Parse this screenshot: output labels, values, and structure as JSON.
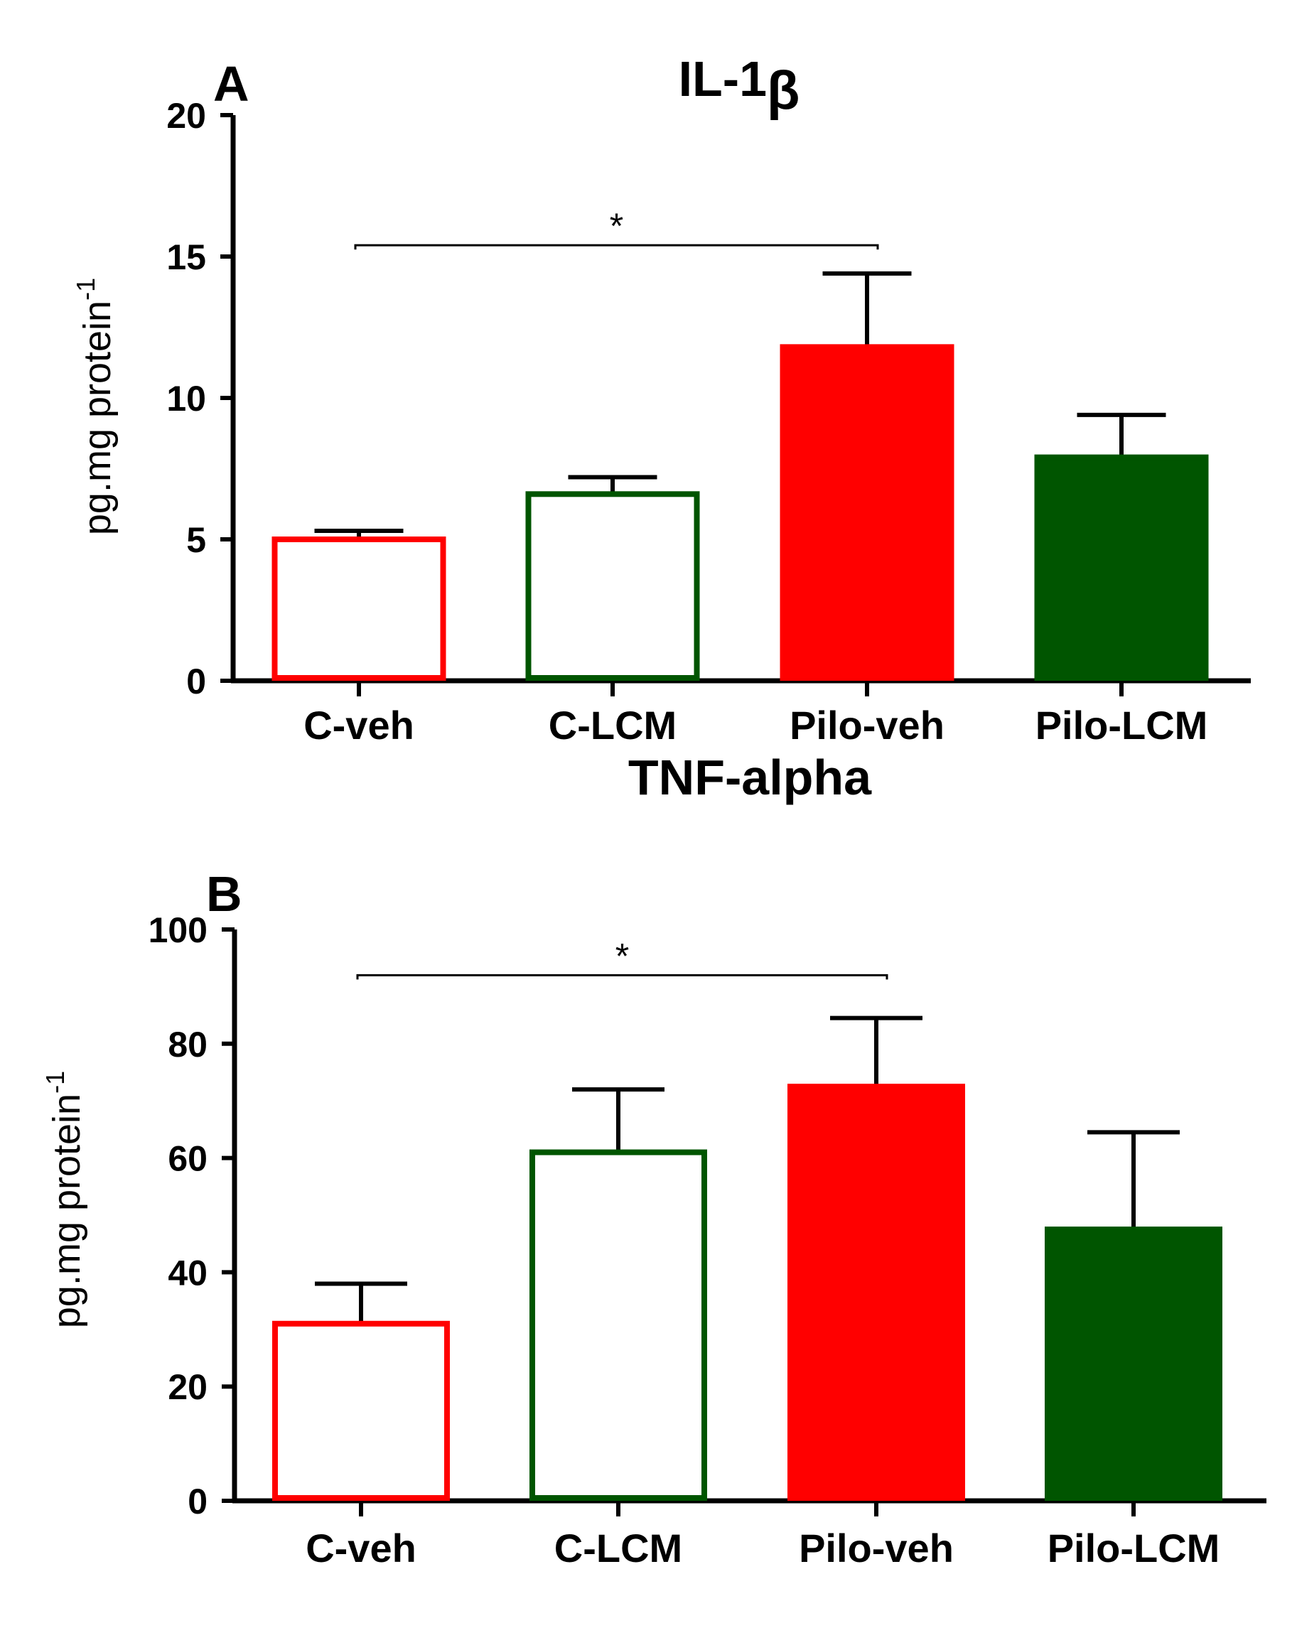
{
  "chart_data": [
    {
      "panel": "A",
      "type": "bar",
      "title": "IL-1β",
      "title_main": "IL-1",
      "title_greek": "β",
      "ylabel": "pg.mg protein",
      "ylabel_superscript": "-1",
      "ylim": [
        0,
        20
      ],
      "yticks": [
        "0",
        "5",
        "10",
        "15",
        "20"
      ],
      "categories": [
        "C-veh",
        "C-LCM",
        "Pilo-veh",
        "Pilo-LCM"
      ],
      "values": [
        5.0,
        6.6,
        11.8,
        7.9
      ],
      "errors": [
        0.3,
        0.6,
        2.6,
        1.5
      ],
      "colors": [
        "#ff0000",
        "#005500",
        "#ff0000",
        "#005500"
      ],
      "filled": [
        false,
        false,
        true,
        true
      ],
      "significance": {
        "from": 0,
        "to": 2,
        "label": "*",
        "y": 15.4
      }
    },
    {
      "panel": "B",
      "type": "bar",
      "title": "TNF-alpha",
      "ylabel": "pg.mg protein",
      "ylabel_superscript": "-1",
      "ylim": [
        0,
        100
      ],
      "yticks": [
        "0",
        "20",
        "40",
        "60",
        "80",
        "100"
      ],
      "categories": [
        "C-veh",
        "C-LCM",
        "Pilo-veh",
        "Pilo-LCM"
      ],
      "values": [
        31,
        61,
        72.5,
        47.5
      ],
      "errors": [
        7,
        11,
        12,
        17
      ],
      "colors": [
        "#ff0000",
        "#005500",
        "#ff0000",
        "#005500"
      ],
      "filled": [
        false,
        false,
        true,
        true
      ],
      "significance": {
        "from": 0,
        "to": 2,
        "label": "*",
        "y": 92
      }
    }
  ]
}
